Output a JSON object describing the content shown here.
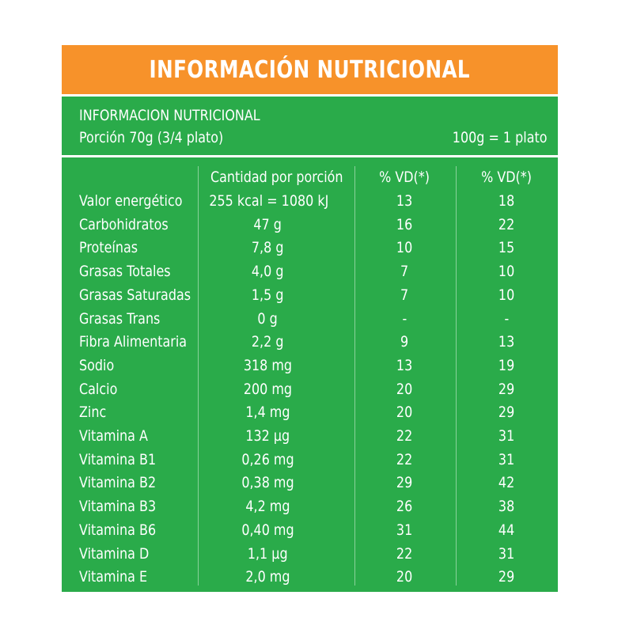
{
  "banner": {
    "title": "INFORMACIÓN NUTRICIONAL"
  },
  "header": {
    "line1": "INFORMACION NUTRICIONAL",
    "line2": "Porción 70g (3/4 plato)",
    "right": "100g = 1 plato"
  },
  "columns": {
    "quantity": "Cantidad por porción",
    "vd1": "% VD(*)",
    "vd2": "% VD(*)"
  },
  "rows": [
    {
      "name": "Valor energético",
      "qty": "255 kcal = 1080 kJ",
      "vd1": "13",
      "vd2": "18"
    },
    {
      "name": "Carbohidratos",
      "qty": "47 g",
      "vd1": "16",
      "vd2": "22"
    },
    {
      "name": "Proteínas",
      "qty": "7,8 g",
      "vd1": "10",
      "vd2": "15"
    },
    {
      "name": "Grasas Totales",
      "qty": "4,0 g",
      "vd1": "7",
      "vd2": "10"
    },
    {
      "name": "Grasas Saturadas",
      "qty": "1,5 g",
      "vd1": "7",
      "vd2": "10"
    },
    {
      "name": "Grasas Trans",
      "qty": "0 g",
      "vd1": "-",
      "vd2": "-"
    },
    {
      "name": "Fibra Alimentaria",
      "qty": "2,2 g",
      "vd1": "9",
      "vd2": "13"
    },
    {
      "name": "Sodio",
      "qty": "318 mg",
      "vd1": "13",
      "vd2": "19"
    },
    {
      "name": "Calcio",
      "qty": "200 mg",
      "vd1": "20",
      "vd2": "29"
    },
    {
      "name": "Zinc",
      "qty": "1,4 mg",
      "vd1": "20",
      "vd2": "29"
    },
    {
      "name": "Vitamina A",
      "qty": "132 µg",
      "vd1": "22",
      "vd2": "31"
    },
    {
      "name": "Vitamina B1",
      "qty": "0,26 mg",
      "vd1": "22",
      "vd2": "31"
    },
    {
      "name": "Vitamina B2",
      "qty": "0,38 mg",
      "vd1": "29",
      "vd2": "42"
    },
    {
      "name": "Vitamina B3",
      "qty": "4,2 mg",
      "vd1": "26",
      "vd2": "38"
    },
    {
      "name": "Vitamina B6",
      "qty": "0,40 mg",
      "vd1": "31",
      "vd2": "44"
    },
    {
      "name": "Vitamina D",
      "qty": "1,1 µg",
      "vd1": "22",
      "vd2": "31"
    },
    {
      "name": "Vitamina E",
      "qty": "2,0 mg",
      "vd1": "20",
      "vd2": "29"
    }
  ],
  "colors": {
    "orange": "#f7922a",
    "green": "#2aab4a",
    "text": "#ffffff"
  }
}
